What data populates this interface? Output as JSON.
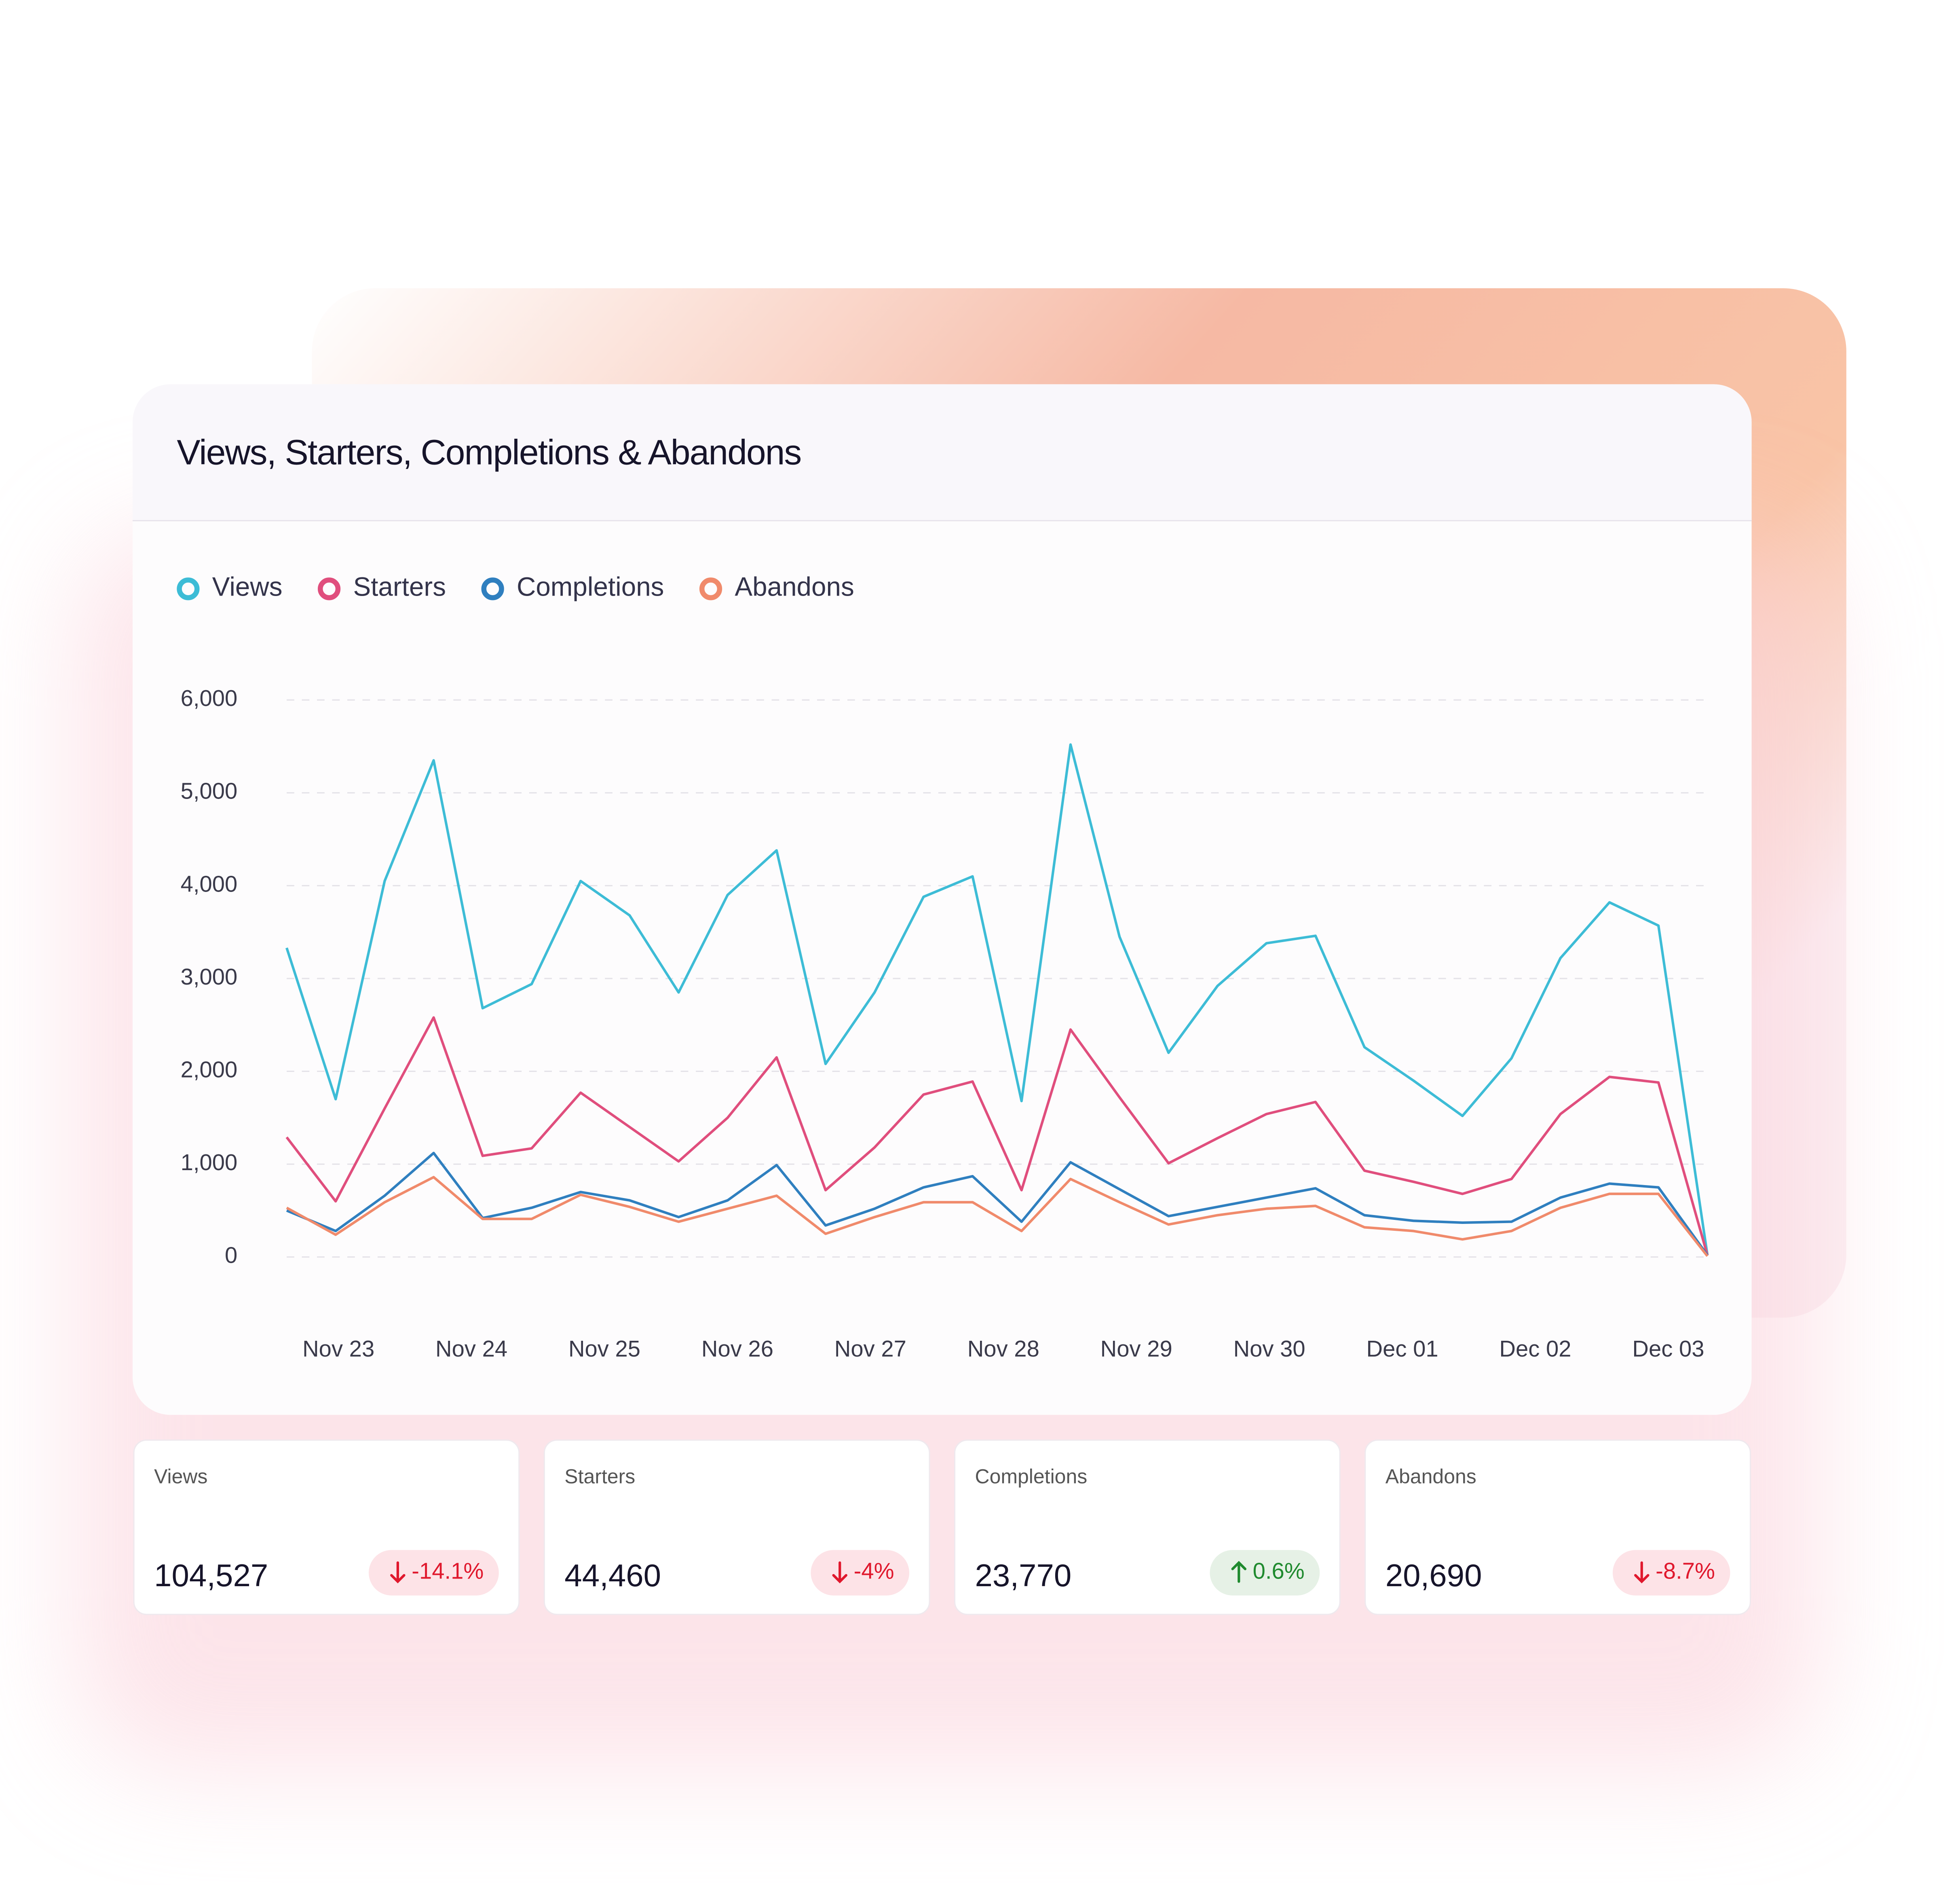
{
  "chart_data": {
    "type": "line",
    "title": "Views, Starters, Completions & Abandons",
    "x_labels": [
      "Nov 23",
      "Nov 24",
      "Nov 25",
      "Nov 26",
      "Nov 27",
      "Nov 28",
      "Nov 29",
      "Nov 30",
      "Dec 01",
      "Dec 02",
      "Dec 03"
    ],
    "series": [
      {
        "name": "Views",
        "color": "#3dbcd6",
        "values": [
          3330,
          1700,
          4050,
          5350,
          2680,
          2940,
          4050,
          3680,
          2850,
          3900,
          4380,
          2080,
          2850,
          3880,
          4100,
          1680,
          5520,
          3450,
          2200,
          2920,
          3380,
          3460,
          2260,
          1900,
          1520,
          2140,
          3220,
          3820,
          3570,
          20
        ]
      },
      {
        "name": "Starters",
        "color": "#e04e7d",
        "values": [
          1290,
          600,
          1600,
          2580,
          1090,
          1170,
          1770,
          1400,
          1030,
          1500,
          2150,
          720,
          1180,
          1750,
          1890,
          720,
          2450,
          1720,
          1010,
          1280,
          1540,
          1670,
          930,
          810,
          680,
          840,
          1540,
          1940,
          1880,
          20
        ]
      },
      {
        "name": "Completions",
        "color": "#2f7fbf",
        "values": [
          500,
          280,
          660,
          1120,
          420,
          530,
          700,
          610,
          430,
          610,
          990,
          340,
          520,
          750,
          870,
          380,
          1020,
          730,
          440,
          540,
          640,
          740,
          450,
          390,
          370,
          380,
          640,
          790,
          750,
          20
        ]
      },
      {
        "name": "Abandons",
        "color": "#f08a6b",
        "values": [
          530,
          240,
          590,
          860,
          410,
          410,
          670,
          540,
          380,
          520,
          660,
          250,
          430,
          590,
          590,
          280,
          840,
          590,
          350,
          450,
          520,
          550,
          320,
          280,
          190,
          280,
          530,
          680,
          680,
          10
        ]
      }
    ],
    "ylim": [
      0,
      6000
    ],
    "yticks": [
      0,
      {
        "value": 1000,
        "label": "1,000"
      },
      {
        "value": 2000,
        "label": "2,000"
      },
      {
        "value": 3000,
        "label": "3,000"
      },
      {
        "value": 4000,
        "label": "4,000"
      },
      {
        "value": 5000,
        "label": "5,000"
      },
      {
        "value": 6000,
        "label": "6,000"
      }
    ],
    "grid": true
  },
  "cards": [
    {
      "label": "Views",
      "value": "104,527",
      "change": "-14.1%",
      "trend": "down"
    },
    {
      "label": "Starters",
      "value": "44,460",
      "change": "-4%",
      "trend": "down"
    },
    {
      "label": "Completions",
      "value": "23,770",
      "change": "0.6%",
      "trend": "up"
    },
    {
      "label": "Abandons",
      "value": "20,690",
      "change": "-8.7%",
      "trend": "down"
    }
  ]
}
